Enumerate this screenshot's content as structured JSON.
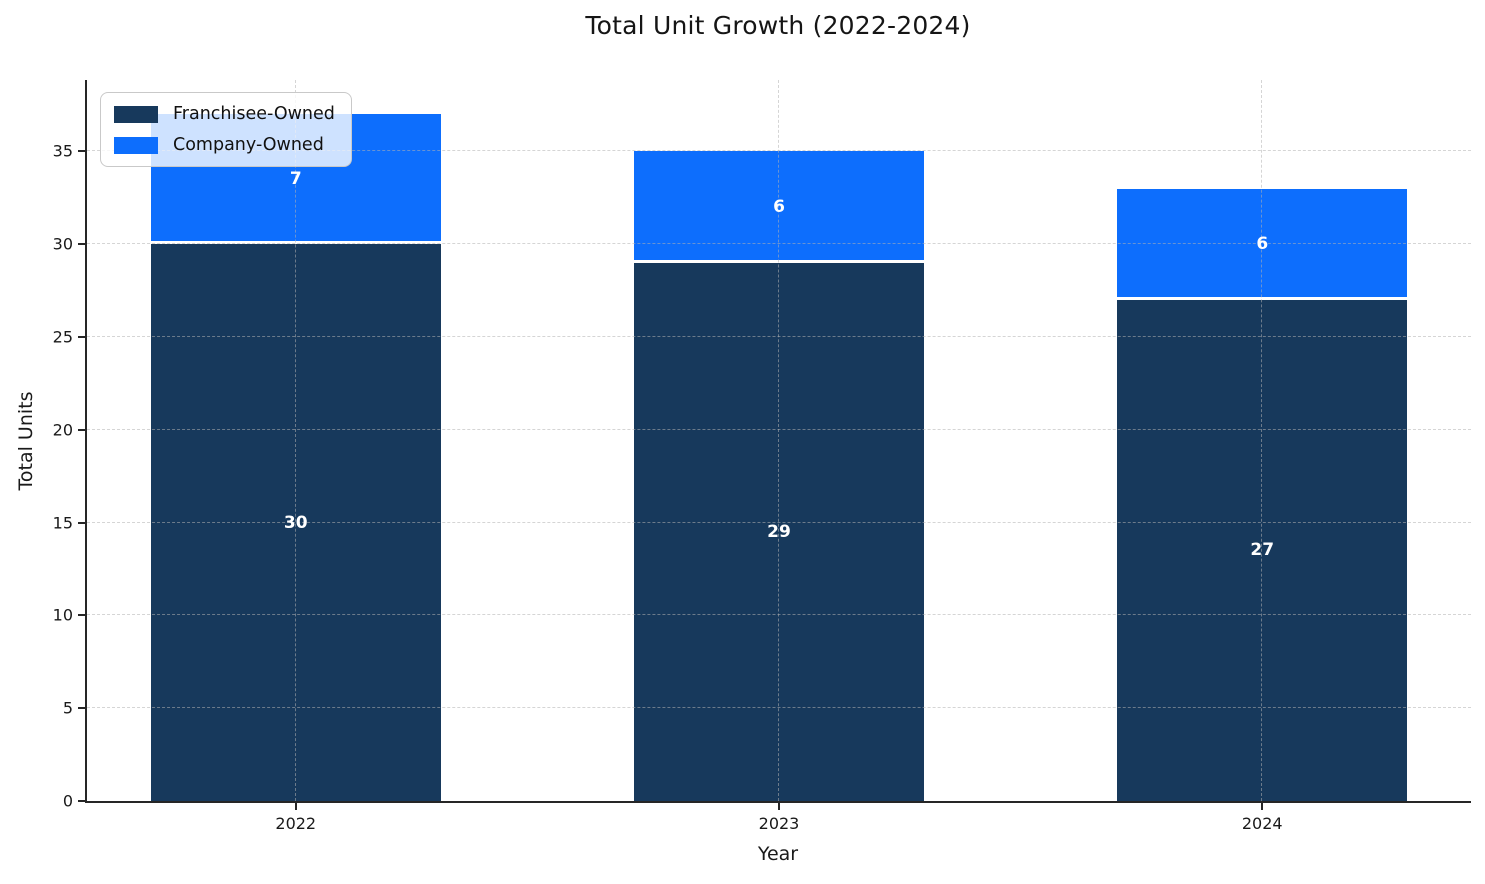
{
  "chart_data": {
    "type": "bar",
    "stacked": true,
    "title": "Total Unit Growth (2022-2024)",
    "xlabel": "Year",
    "ylabel": "Total Units",
    "categories": [
      "2022",
      "2023",
      "2024"
    ],
    "series": [
      {
        "name": "Franchisee-Owned",
        "color": "#17395c",
        "values": [
          30,
          29,
          27
        ]
      },
      {
        "name": "Company-Owned",
        "color": "#0d6efd",
        "values": [
          7,
          6,
          6
        ]
      }
    ],
    "stack_totals": [
      37,
      35,
      33
    ],
    "ylim": [
      0,
      38.85
    ],
    "yticks": [
      0,
      5,
      10,
      15,
      20,
      25,
      30,
      35
    ],
    "grid": {
      "visible": true,
      "style": "dashed",
      "axes": "both"
    },
    "legend": {
      "position": "upper left"
    },
    "value_labels": {
      "color": "#ffffff",
      "bold": true
    }
  },
  "colors": {
    "background": "#ffffff",
    "axis": "#262626",
    "grid": "#b2b2b2",
    "text": "#1a1a1a"
  }
}
